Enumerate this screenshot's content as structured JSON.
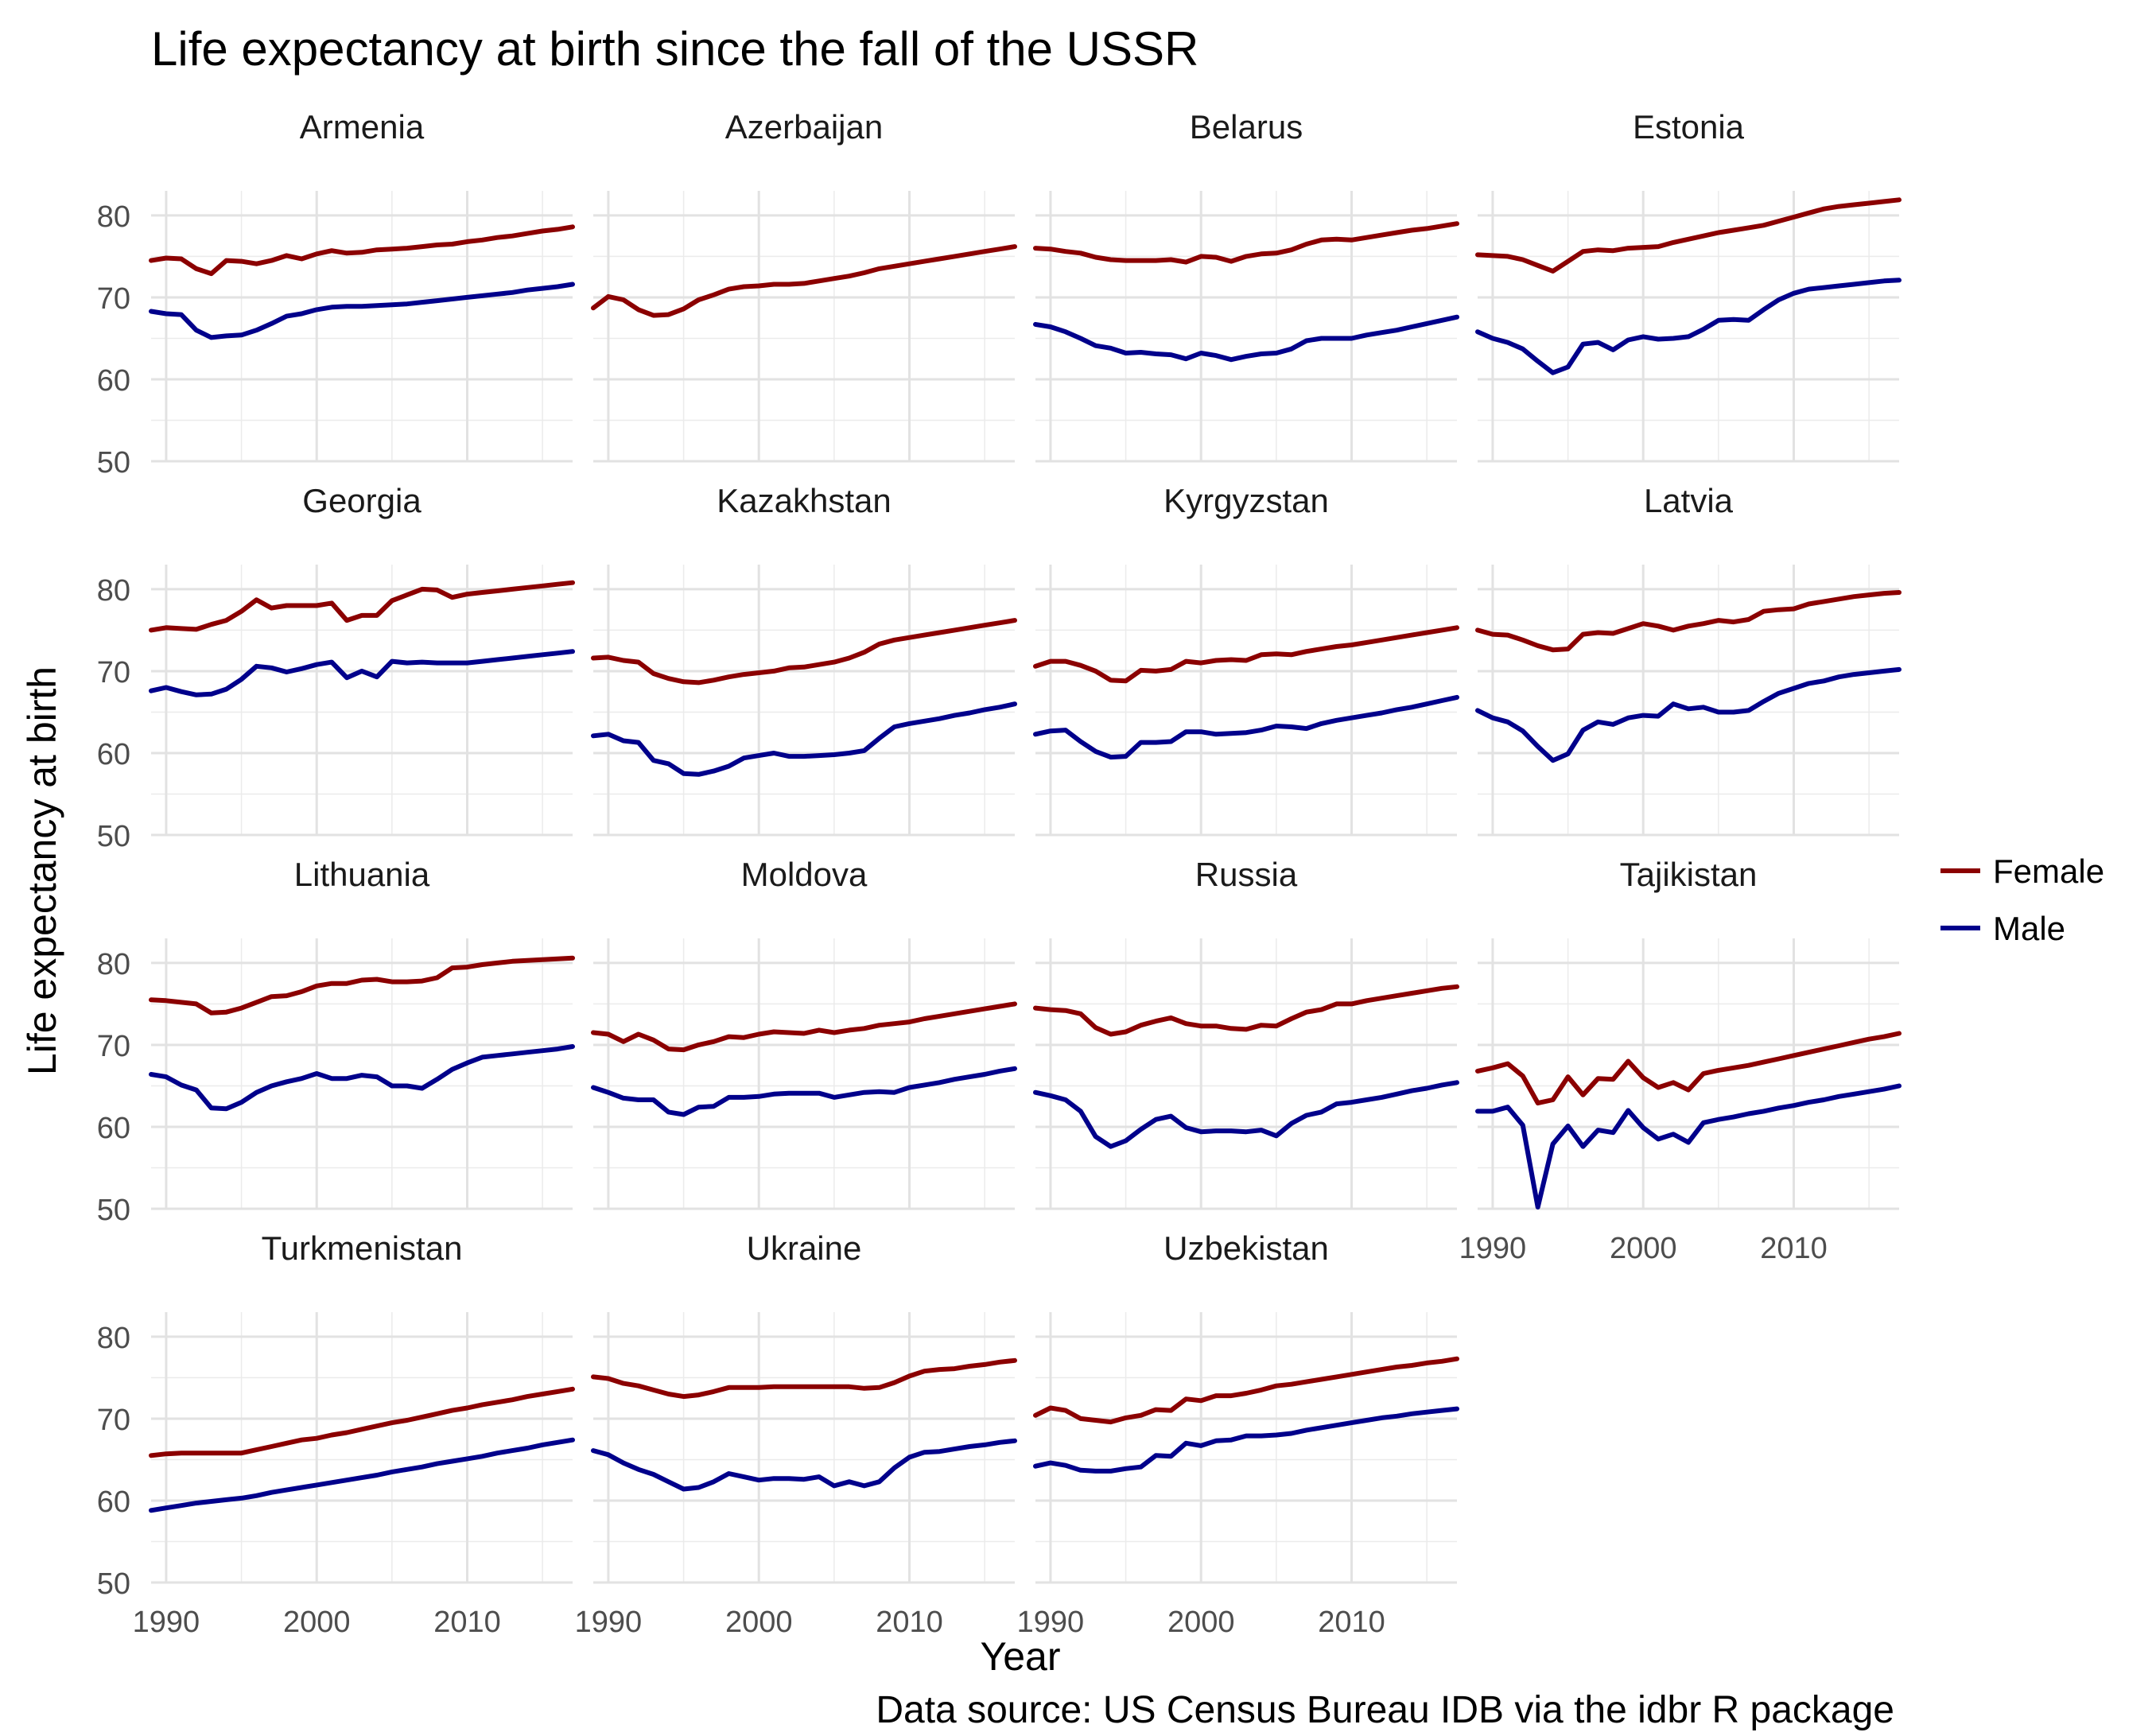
{
  "chart_data": {
    "type": "line",
    "title": "Life expectancy at birth since the fall of the USSR",
    "xlabel": "Year",
    "ylabel": "Life expectancy at birth",
    "caption": "Data source: US Census Bureau IDB via the idbr R package",
    "xlim": [
      1989,
      2017
    ],
    "ylim": [
      50,
      83
    ],
    "x_ticks": [
      1990,
      2000,
      2010
    ],
    "y_ticks": [
      50,
      60,
      70,
      80
    ],
    "grid": true,
    "legend": {
      "position": "right",
      "entries": [
        {
          "label": "Female",
          "color": "#8B0000"
        },
        {
          "label": "Male",
          "color": "#00008B"
        }
      ]
    },
    "series_colors": {
      "female": "#8B0000",
      "male": "#00008B"
    },
    "years": [
      1989,
      1990,
      1991,
      1992,
      1993,
      1994,
      1995,
      1996,
      1997,
      1998,
      1999,
      2000,
      2001,
      2002,
      2003,
      2004,
      2005,
      2006,
      2007,
      2008,
      2009,
      2010,
      2011,
      2012,
      2013,
      2014,
      2015,
      2016,
      2017
    ],
    "panels": [
      {
        "country": "Armenia",
        "female": [
          74.5,
          74.8,
          74.7,
          73.5,
          72.9,
          74.5,
          74.4,
          74.1,
          74.5,
          75.1,
          74.7,
          75.3,
          75.7,
          75.4,
          75.5,
          75.8,
          75.9,
          76.0,
          76.2,
          76.4,
          76.5,
          76.8,
          77.0,
          77.3,
          77.5,
          77.8,
          78.1,
          78.3,
          78.6
        ],
        "male": [
          68.3,
          68.0,
          67.9,
          66.0,
          65.1,
          65.3,
          65.4,
          66.0,
          66.8,
          67.7,
          68.0,
          68.5,
          68.8,
          68.9,
          68.9,
          69.0,
          69.1,
          69.2,
          69.4,
          69.6,
          69.8,
          70.0,
          70.2,
          70.4,
          70.6,
          70.9,
          71.1,
          71.3,
          71.6
        ]
      },
      {
        "country": "Azerbaijan",
        "female": [
          68.7,
          70.1,
          69.7,
          68.5,
          67.8,
          67.9,
          68.6,
          69.7,
          70.3,
          71.0,
          71.3,
          71.4,
          71.6,
          71.6,
          71.7,
          72.0,
          72.3,
          72.6,
          73.0,
          73.5,
          73.8,
          74.1,
          74.4,
          74.7,
          75.0,
          75.3,
          75.6,
          75.9,
          76.2
        ]
      },
      {
        "country": "Belarus",
        "female": [
          76.0,
          75.9,
          75.6,
          75.4,
          74.9,
          74.6,
          74.5,
          74.5,
          74.5,
          74.6,
          74.3,
          75.0,
          74.9,
          74.4,
          75.0,
          75.3,
          75.4,
          75.8,
          76.5,
          77.0,
          77.1,
          77.0,
          77.3,
          77.6,
          77.9,
          78.2,
          78.4,
          78.7,
          79.0
        ],
        "male": [
          66.7,
          66.4,
          65.8,
          65.0,
          64.1,
          63.8,
          63.2,
          63.3,
          63.1,
          63.0,
          62.5,
          63.2,
          62.9,
          62.4,
          62.8,
          63.1,
          63.2,
          63.7,
          64.7,
          65.0,
          65.0,
          65.0,
          65.4,
          65.7,
          66.0,
          66.4,
          66.8,
          67.2,
          67.6
        ]
      },
      {
        "country": "Estonia",
        "female": [
          75.2,
          75.1,
          75.0,
          74.6,
          73.9,
          73.2,
          74.4,
          75.6,
          75.8,
          75.7,
          76.0,
          76.1,
          76.2,
          76.7,
          77.1,
          77.5,
          77.9,
          78.2,
          78.5,
          78.8,
          79.3,
          79.8,
          80.3,
          80.8,
          81.1,
          81.3,
          81.5,
          81.7,
          81.9
        ],
        "male": [
          65.8,
          65.0,
          64.5,
          63.7,
          62.2,
          60.8,
          61.5,
          64.3,
          64.5,
          63.6,
          64.8,
          65.2,
          64.9,
          65.0,
          65.2,
          66.1,
          67.2,
          67.3,
          67.2,
          68.5,
          69.7,
          70.5,
          71.0,
          71.2,
          71.4,
          71.6,
          71.8,
          72.0,
          72.1
        ]
      },
      {
        "country": "Georgia",
        "female": [
          75.0,
          75.3,
          75.2,
          75.1,
          75.7,
          76.2,
          77.3,
          78.7,
          77.7,
          78.0,
          78.0,
          78.0,
          78.3,
          76.2,
          76.8,
          76.8,
          78.6,
          79.3,
          80.0,
          79.9,
          79.0,
          79.4,
          79.6,
          79.8,
          80.0,
          80.2,
          80.4,
          80.6,
          80.8
        ],
        "male": [
          67.6,
          68.0,
          67.5,
          67.1,
          67.2,
          67.8,
          69.0,
          70.6,
          70.4,
          69.9,
          70.3,
          70.8,
          71.1,
          69.2,
          70.0,
          69.3,
          71.2,
          71.0,
          71.1,
          71.0,
          71.0,
          71.0,
          71.2,
          71.4,
          71.6,
          71.8,
          72.0,
          72.2,
          72.4
        ]
      },
      {
        "country": "Kazakhstan",
        "female": [
          71.6,
          71.7,
          71.3,
          71.1,
          69.7,
          69.1,
          68.7,
          68.6,
          68.9,
          69.3,
          69.6,
          69.8,
          70.0,
          70.4,
          70.5,
          70.8,
          71.1,
          71.6,
          72.3,
          73.3,
          73.8,
          74.1,
          74.4,
          74.7,
          75.0,
          75.3,
          75.6,
          75.9,
          76.2
        ],
        "male": [
          62.1,
          62.3,
          61.5,
          61.3,
          59.1,
          58.7,
          57.5,
          57.4,
          57.8,
          58.4,
          59.4,
          59.7,
          60.0,
          59.6,
          59.6,
          59.7,
          59.8,
          60.0,
          60.3,
          61.8,
          63.2,
          63.6,
          63.9,
          64.2,
          64.6,
          64.9,
          65.3,
          65.6,
          66.0
        ]
      },
      {
        "country": "Kyrgyzstan",
        "female": [
          70.6,
          71.2,
          71.2,
          70.7,
          70.0,
          68.9,
          68.8,
          70.1,
          70.0,
          70.2,
          71.2,
          71.0,
          71.3,
          71.4,
          71.3,
          72.0,
          72.1,
          72.0,
          72.4,
          72.7,
          73.0,
          73.2,
          73.5,
          73.8,
          74.1,
          74.4,
          74.7,
          75.0,
          75.3
        ],
        "male": [
          62.3,
          62.7,
          62.8,
          61.4,
          60.2,
          59.5,
          59.6,
          61.3,
          61.3,
          61.4,
          62.6,
          62.6,
          62.3,
          62.4,
          62.5,
          62.8,
          63.3,
          63.2,
          63.0,
          63.6,
          64.0,
          64.3,
          64.6,
          64.9,
          65.3,
          65.6,
          66.0,
          66.4,
          66.8
        ]
      },
      {
        "country": "Latvia",
        "female": [
          75.0,
          74.5,
          74.4,
          73.8,
          73.1,
          72.6,
          72.7,
          74.5,
          74.7,
          74.6,
          75.2,
          75.8,
          75.5,
          75.0,
          75.5,
          75.8,
          76.2,
          76.0,
          76.3,
          77.3,
          77.5,
          77.6,
          78.2,
          78.5,
          78.8,
          79.1,
          79.3,
          79.5,
          79.6
        ],
        "male": [
          65.2,
          64.3,
          63.8,
          62.7,
          60.8,
          59.1,
          59.9,
          62.8,
          63.8,
          63.5,
          64.3,
          64.6,
          64.5,
          66.0,
          65.4,
          65.6,
          65.0,
          65.0,
          65.2,
          66.3,
          67.3,
          67.9,
          68.5,
          68.8,
          69.3,
          69.6,
          69.8,
          70.0,
          70.2
        ]
      },
      {
        "country": "Lithuania",
        "female": [
          75.5,
          75.4,
          75.2,
          75.0,
          73.9,
          74.0,
          74.5,
          75.2,
          75.9,
          76.0,
          76.5,
          77.2,
          77.5,
          77.5,
          77.9,
          78.0,
          77.7,
          77.7,
          77.8,
          78.2,
          79.4,
          79.5,
          79.8,
          80.0,
          80.2,
          80.3,
          80.4,
          80.5,
          80.6
        ],
        "male": [
          66.4,
          66.1,
          65.1,
          64.5,
          62.3,
          62.2,
          63.0,
          64.2,
          65.0,
          65.5,
          65.9,
          66.5,
          65.9,
          65.9,
          66.3,
          66.1,
          65.0,
          65.0,
          64.7,
          65.8,
          67.0,
          67.8,
          68.5,
          68.7,
          68.9,
          69.1,
          69.3,
          69.5,
          69.8
        ]
      },
      {
        "country": "Moldova",
        "female": [
          71.5,
          71.3,
          70.4,
          71.3,
          70.6,
          69.5,
          69.4,
          70.0,
          70.4,
          71.0,
          70.9,
          71.3,
          71.6,
          71.5,
          71.4,
          71.8,
          71.5,
          71.8,
          72.0,
          72.4,
          72.6,
          72.8,
          73.2,
          73.5,
          73.8,
          74.1,
          74.4,
          74.7,
          75.0
        ],
        "male": [
          64.8,
          64.2,
          63.5,
          63.3,
          63.3,
          61.8,
          61.5,
          62.4,
          62.5,
          63.6,
          63.6,
          63.7,
          64.0,
          64.1,
          64.1,
          64.1,
          63.6,
          63.9,
          64.2,
          64.3,
          64.2,
          64.8,
          65.1,
          65.4,
          65.8,
          66.1,
          66.4,
          66.8,
          67.1
        ]
      },
      {
        "country": "Russia",
        "female": [
          74.5,
          74.3,
          74.2,
          73.8,
          72.1,
          71.3,
          71.6,
          72.4,
          72.9,
          73.3,
          72.6,
          72.3,
          72.3,
          72.0,
          71.9,
          72.4,
          72.3,
          73.2,
          74.0,
          74.3,
          75.0,
          75.0,
          75.4,
          75.7,
          76.0,
          76.3,
          76.6,
          76.9,
          77.1
        ],
        "male": [
          64.2,
          63.8,
          63.3,
          61.9,
          58.8,
          57.6,
          58.3,
          59.7,
          60.9,
          61.3,
          59.9,
          59.4,
          59.5,
          59.5,
          59.4,
          59.6,
          58.9,
          60.4,
          61.4,
          61.8,
          62.8,
          63.0,
          63.3,
          63.6,
          64.0,
          64.4,
          64.7,
          65.1,
          65.4
        ]
      },
      {
        "country": "Tajikistan",
        "female": [
          66.8,
          67.2,
          67.7,
          66.2,
          62.9,
          63.3,
          66.1,
          63.9,
          65.9,
          65.8,
          68.0,
          66.0,
          64.8,
          65.4,
          64.5,
          66.5,
          66.9,
          67.2,
          67.5,
          67.9,
          68.3,
          68.7,
          69.1,
          69.5,
          69.9,
          70.3,
          70.7,
          71.0,
          71.4
        ],
        "male": [
          61.9,
          61.9,
          62.4,
          60.2,
          50.2,
          57.9,
          60.1,
          57.6,
          59.6,
          59.3,
          62.0,
          59.9,
          58.5,
          59.1,
          58.1,
          60.5,
          60.9,
          61.2,
          61.6,
          61.9,
          62.3,
          62.6,
          63.0,
          63.3,
          63.7,
          64.0,
          64.3,
          64.6,
          65.0
        ]
      },
      {
        "country": "Turkmenistan",
        "female": [
          65.5,
          65.7,
          65.8,
          65.8,
          65.8,
          65.8,
          65.8,
          66.2,
          66.6,
          67.0,
          67.4,
          67.6,
          68.0,
          68.3,
          68.7,
          69.1,
          69.5,
          69.8,
          70.2,
          70.6,
          71.0,
          71.3,
          71.7,
          72.0,
          72.3,
          72.7,
          73.0,
          73.3,
          73.6
        ],
        "male": [
          58.8,
          59.1,
          59.4,
          59.7,
          59.9,
          60.1,
          60.3,
          60.6,
          61.0,
          61.3,
          61.6,
          61.9,
          62.2,
          62.5,
          62.8,
          63.1,
          63.5,
          63.8,
          64.1,
          64.5,
          64.8,
          65.1,
          65.4,
          65.8,
          66.1,
          66.4,
          66.8,
          67.1,
          67.4
        ]
      },
      {
        "country": "Ukraine",
        "female": [
          75.1,
          74.9,
          74.3,
          74.0,
          73.5,
          73.0,
          72.7,
          72.9,
          73.3,
          73.8,
          73.8,
          73.8,
          73.9,
          73.9,
          73.9,
          73.9,
          73.9,
          73.9,
          73.7,
          73.8,
          74.4,
          75.2,
          75.8,
          76.0,
          76.1,
          76.4,
          76.6,
          76.9,
          77.1
        ],
        "male": [
          66.1,
          65.6,
          64.6,
          63.8,
          63.2,
          62.3,
          61.4,
          61.6,
          62.3,
          63.3,
          62.9,
          62.5,
          62.7,
          62.7,
          62.6,
          62.9,
          61.8,
          62.3,
          61.8,
          62.3,
          64.0,
          65.3,
          65.9,
          66.0,
          66.3,
          66.6,
          66.8,
          67.1,
          67.3
        ]
      },
      {
        "country": "Uzbekistan",
        "female": [
          70.4,
          71.3,
          71.0,
          70.0,
          69.8,
          69.6,
          70.1,
          70.4,
          71.1,
          71.0,
          72.4,
          72.2,
          72.8,
          72.8,
          73.1,
          73.5,
          74.0,
          74.2,
          74.5,
          74.8,
          75.1,
          75.4,
          75.7,
          76.0,
          76.3,
          76.5,
          76.8,
          77.0,
          77.3
        ],
        "male": [
          64.2,
          64.6,
          64.3,
          63.7,
          63.6,
          63.6,
          63.9,
          64.1,
          65.5,
          65.4,
          67.0,
          66.7,
          67.3,
          67.4,
          67.9,
          67.9,
          68.0,
          68.2,
          68.6,
          68.9,
          69.2,
          69.5,
          69.8,
          70.1,
          70.3,
          70.6,
          70.8,
          71.0,
          71.2
        ]
      }
    ]
  }
}
